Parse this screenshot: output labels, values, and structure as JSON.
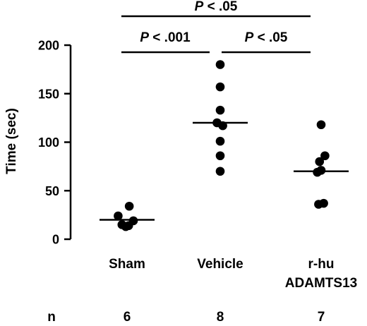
{
  "chart_data": {
    "type": "scatter",
    "title": "",
    "xlabel": "",
    "ylabel": "Time (sec)",
    "ylim": [
      0,
      200
    ],
    "yticks": [
      0,
      50,
      100,
      150,
      200
    ],
    "grid": false,
    "categories": [
      {
        "label": "Sham",
        "label2": "",
        "n": "6"
      },
      {
        "label": "Vehicle",
        "label2": "",
        "n": "8"
      },
      {
        "label": "r-hu",
        "label2": "ADAMTS13",
        "n": "7"
      }
    ],
    "n_label": "n",
    "groups": [
      {
        "name": "Sham",
        "median": 20,
        "points": [
          {
            "x": -0.28,
            "y": 24
          },
          {
            "x": 0.07,
            "y": 34
          },
          {
            "x": -0.16,
            "y": 15
          },
          {
            "x": 0.05,
            "y": 14
          },
          {
            "x": 0.2,
            "y": 19
          },
          {
            "x": -0.04,
            "y": 13
          }
        ]
      },
      {
        "name": "Vehicle",
        "median": 120,
        "points": [
          {
            "x": 0.0,
            "y": 180
          },
          {
            "x": 0.0,
            "y": 157
          },
          {
            "x": 0.0,
            "y": 133
          },
          {
            "x": -0.1,
            "y": 120
          },
          {
            "x": 0.08,
            "y": 117
          },
          {
            "x": 0.0,
            "y": 101
          },
          {
            "x": 0.0,
            "y": 86
          },
          {
            "x": 0.0,
            "y": 70
          }
        ]
      },
      {
        "name": "r-hu ADAMTS13",
        "median": 70,
        "points": [
          {
            "x": 0.0,
            "y": 118
          },
          {
            "x": 0.12,
            "y": 86
          },
          {
            "x": -0.05,
            "y": 80
          },
          {
            "x": 0.0,
            "y": 71
          },
          {
            "x": -0.12,
            "y": 69
          },
          {
            "x": -0.08,
            "y": 36
          },
          {
            "x": 0.08,
            "y": 37
          }
        ]
      }
    ],
    "comparisons": [
      {
        "from": 1,
        "to": 2,
        "level": 1,
        "p_label": "P",
        "p_value": "< .001"
      },
      {
        "from": 2,
        "to": 3,
        "level": 1,
        "p_label": "P",
        "p_value": "< .05"
      },
      {
        "from": 1,
        "to": 3,
        "level": 2,
        "p_label": "P",
        "p_value": "< .05"
      }
    ]
  }
}
